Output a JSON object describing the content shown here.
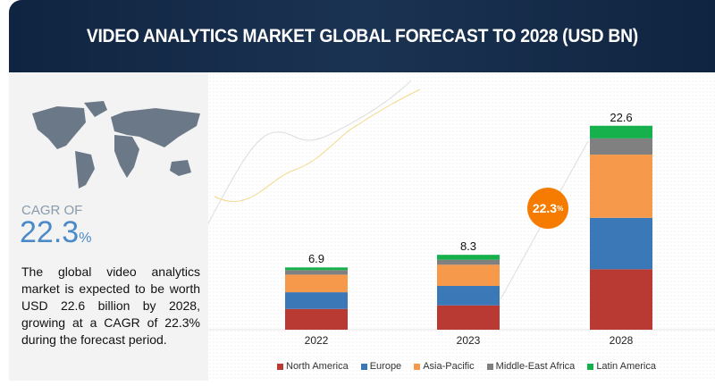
{
  "header": {
    "title": "VIDEO ANALYTICS MARKET GLOBAL FORECAST TO 2028 (USD BN)"
  },
  "left": {
    "cagr_label": "CAGR OF",
    "cagr_value": "22.3",
    "cagr_unit": "%",
    "description": "The global video analytics market is expected to be worth USD 22.6 billion by 2028, growing at a CAGR of 22.3% during the forecast period."
  },
  "badge": {
    "value": "22.3",
    "unit": "%"
  },
  "chart_data": {
    "type": "bar",
    "stacked": true,
    "categories": [
      "2022",
      "2023",
      "2028"
    ],
    "totals": [
      "6.9",
      "8.3",
      "22.6"
    ],
    "series": [
      {
        "name": "North America",
        "color": "#b83a32",
        "values": [
          2.3,
          2.7,
          6.7
        ]
      },
      {
        "name": "Europe",
        "color": "#3a78b8",
        "values": [
          1.85,
          2.15,
          5.7
        ]
      },
      {
        "name": "Asia-Pacific",
        "color": "#f7994a",
        "values": [
          1.95,
          2.35,
          7.0
        ]
      },
      {
        "name": "Middle-East Africa",
        "color": "#808080",
        "values": [
          0.5,
          0.55,
          1.8
        ]
      },
      {
        "name": "Latin America",
        "color": "#16b04c",
        "values": [
          0.3,
          0.55,
          1.4
        ]
      }
    ],
    "legend": "bottom",
    "grid": false
  }
}
